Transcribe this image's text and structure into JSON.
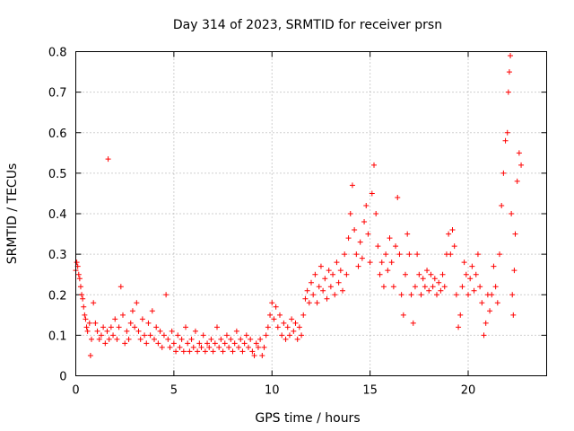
{
  "chart_data": {
    "type": "scatter",
    "title": "Day 314 of 2023, SRMTID for receiver prsn",
    "xlabel": "GPS time / hours",
    "ylabel": "SRMTID / TECUs",
    "xlim": [
      0,
      24
    ],
    "ylim": [
      0,
      0.8
    ],
    "xticks": [
      0,
      5,
      10,
      15,
      20
    ],
    "xtick_labels": [
      "0",
      "5",
      "10",
      "15",
      "20"
    ],
    "yticks": [
      0,
      0.1,
      0.2,
      0.3,
      0.4,
      0.5,
      0.6,
      0.7,
      0.8
    ],
    "ytick_labels": [
      "0",
      "0.1",
      "0.2",
      "0.3",
      "0.4",
      "0.5",
      "0.6",
      "0.7",
      "0.8"
    ],
    "grid": true,
    "marker": "+",
    "color": "#ff0000",
    "series": [
      {
        "name": "SRMTID",
        "points": [
          [
            0.0,
            0.26
          ],
          [
            0.05,
            0.28
          ],
          [
            0.1,
            0.27
          ],
          [
            0.15,
            0.25
          ],
          [
            0.2,
            0.24
          ],
          [
            0.25,
            0.22
          ],
          [
            0.3,
            0.2
          ],
          [
            0.35,
            0.19
          ],
          [
            0.4,
            0.17
          ],
          [
            0.45,
            0.15
          ],
          [
            0.5,
            0.14
          ],
          [
            0.55,
            0.12
          ],
          [
            0.6,
            0.11
          ],
          [
            0.7,
            0.13
          ],
          [
            0.75,
            0.05
          ],
          [
            0.8,
            0.09
          ],
          [
            0.9,
            0.18
          ],
          [
            1.0,
            0.13
          ],
          [
            1.1,
            0.11
          ],
          [
            1.2,
            0.09
          ],
          [
            1.3,
            0.1
          ],
          [
            1.4,
            0.12
          ],
          [
            1.5,
            0.08
          ],
          [
            1.6,
            0.11
          ],
          [
            1.65,
            0.535
          ],
          [
            1.7,
            0.09
          ],
          [
            1.8,
            0.12
          ],
          [
            1.9,
            0.1
          ],
          [
            2.0,
            0.14
          ],
          [
            2.1,
            0.09
          ],
          [
            2.2,
            0.12
          ],
          [
            2.3,
            0.22
          ],
          [
            2.4,
            0.15
          ],
          [
            2.5,
            0.08
          ],
          [
            2.6,
            0.11
          ],
          [
            2.7,
            0.09
          ],
          [
            2.8,
            0.13
          ],
          [
            2.9,
            0.16
          ],
          [
            3.0,
            0.12
          ],
          [
            3.1,
            0.18
          ],
          [
            3.2,
            0.11
          ],
          [
            3.3,
            0.09
          ],
          [
            3.4,
            0.14
          ],
          [
            3.5,
            0.1
          ],
          [
            3.6,
            0.08
          ],
          [
            3.7,
            0.13
          ],
          [
            3.8,
            0.1
          ],
          [
            3.9,
            0.16
          ],
          [
            4.0,
            0.09
          ],
          [
            4.1,
            0.12
          ],
          [
            4.2,
            0.08
          ],
          [
            4.3,
            0.11
          ],
          [
            4.4,
            0.07
          ],
          [
            4.5,
            0.1
          ],
          [
            4.6,
            0.2
          ],
          [
            4.7,
            0.09
          ],
          [
            4.8,
            0.07
          ],
          [
            4.9,
            0.11
          ],
          [
            5.0,
            0.08
          ],
          [
            5.1,
            0.06
          ],
          [
            5.2,
            0.1
          ],
          [
            5.3,
            0.07
          ],
          [
            5.4,
            0.09
          ],
          [
            5.5,
            0.06
          ],
          [
            5.6,
            0.12
          ],
          [
            5.7,
            0.08
          ],
          [
            5.8,
            0.06
          ],
          [
            5.9,
            0.09
          ],
          [
            6.0,
            0.07
          ],
          [
            6.1,
            0.11
          ],
          [
            6.2,
            0.06
          ],
          [
            6.3,
            0.08
          ],
          [
            6.4,
            0.07
          ],
          [
            6.5,
            0.1
          ],
          [
            6.6,
            0.06
          ],
          [
            6.7,
            0.08
          ],
          [
            6.8,
            0.07
          ],
          [
            6.9,
            0.09
          ],
          [
            7.0,
            0.06
          ],
          [
            7.1,
            0.08
          ],
          [
            7.2,
            0.12
          ],
          [
            7.3,
            0.07
          ],
          [
            7.4,
            0.09
          ],
          [
            7.5,
            0.06
          ],
          [
            7.6,
            0.08
          ],
          [
            7.7,
            0.1
          ],
          [
            7.8,
            0.07
          ],
          [
            7.9,
            0.09
          ],
          [
            8.0,
            0.06
          ],
          [
            8.1,
            0.08
          ],
          [
            8.2,
            0.11
          ],
          [
            8.3,
            0.07
          ],
          [
            8.4,
            0.09
          ],
          [
            8.5,
            0.06
          ],
          [
            8.6,
            0.08
          ],
          [
            8.7,
            0.1
          ],
          [
            8.8,
            0.07
          ],
          [
            8.9,
            0.09
          ],
          [
            9.0,
            0.06
          ],
          [
            9.1,
            0.05
          ],
          [
            9.2,
            0.08
          ],
          [
            9.3,
            0.07
          ],
          [
            9.4,
            0.09
          ],
          [
            9.5,
            0.05
          ],
          [
            9.6,
            0.07
          ],
          [
            9.7,
            0.1
          ],
          [
            9.8,
            0.12
          ],
          [
            9.9,
            0.15
          ],
          [
            10.0,
            0.18
          ],
          [
            10.1,
            0.14
          ],
          [
            10.2,
            0.17
          ],
          [
            10.3,
            0.12
          ],
          [
            10.4,
            0.15
          ],
          [
            10.5,
            0.1
          ],
          [
            10.6,
            0.13
          ],
          [
            10.7,
            0.09
          ],
          [
            10.8,
            0.12
          ],
          [
            10.9,
            0.1
          ],
          [
            11.0,
            0.14
          ],
          [
            11.1,
            0.11
          ],
          [
            11.2,
            0.13
          ],
          [
            11.3,
            0.09
          ],
          [
            11.4,
            0.12
          ],
          [
            11.5,
            0.1
          ],
          [
            11.6,
            0.15
          ],
          [
            11.7,
            0.19
          ],
          [
            11.8,
            0.21
          ],
          [
            11.9,
            0.18
          ],
          [
            12.0,
            0.23
          ],
          [
            12.1,
            0.2
          ],
          [
            12.2,
            0.25
          ],
          [
            12.3,
            0.18
          ],
          [
            12.4,
            0.22
          ],
          [
            12.5,
            0.27
          ],
          [
            12.6,
            0.21
          ],
          [
            12.7,
            0.24
          ],
          [
            12.8,
            0.19
          ],
          [
            12.9,
            0.26
          ],
          [
            13.0,
            0.22
          ],
          [
            13.1,
            0.25
          ],
          [
            13.2,
            0.2
          ],
          [
            13.3,
            0.28
          ],
          [
            13.4,
            0.23
          ],
          [
            13.5,
            0.26
          ],
          [
            13.6,
            0.21
          ],
          [
            13.7,
            0.3
          ],
          [
            13.8,
            0.25
          ],
          [
            13.9,
            0.34
          ],
          [
            14.0,
            0.4
          ],
          [
            14.1,
            0.47
          ],
          [
            14.2,
            0.36
          ],
          [
            14.3,
            0.3
          ],
          [
            14.4,
            0.27
          ],
          [
            14.5,
            0.33
          ],
          [
            14.6,
            0.29
          ],
          [
            14.7,
            0.38
          ],
          [
            14.8,
            0.42
          ],
          [
            14.9,
            0.35
          ],
          [
            15.0,
            0.28
          ],
          [
            15.1,
            0.45
          ],
          [
            15.2,
            0.52
          ],
          [
            15.3,
            0.4
          ],
          [
            15.4,
            0.32
          ],
          [
            15.5,
            0.25
          ],
          [
            15.6,
            0.28
          ],
          [
            15.7,
            0.22
          ],
          [
            15.8,
            0.3
          ],
          [
            15.9,
            0.26
          ],
          [
            16.0,
            0.34
          ],
          [
            16.1,
            0.28
          ],
          [
            16.2,
            0.22
          ],
          [
            16.3,
            0.32
          ],
          [
            16.4,
            0.44
          ],
          [
            16.5,
            0.3
          ],
          [
            16.6,
            0.2
          ],
          [
            16.7,
            0.15
          ],
          [
            16.8,
            0.25
          ],
          [
            16.9,
            0.35
          ],
          [
            17.0,
            0.3
          ],
          [
            17.1,
            0.2
          ],
          [
            17.2,
            0.13
          ],
          [
            17.3,
            0.22
          ],
          [
            17.4,
            0.3
          ],
          [
            17.5,
            0.25
          ],
          [
            17.6,
            0.2
          ],
          [
            17.7,
            0.24
          ],
          [
            17.8,
            0.22
          ],
          [
            17.9,
            0.26
          ],
          [
            18.0,
            0.21
          ],
          [
            18.1,
            0.25
          ],
          [
            18.2,
            0.22
          ],
          [
            18.3,
            0.24
          ],
          [
            18.4,
            0.2
          ],
          [
            18.5,
            0.23
          ],
          [
            18.6,
            0.21
          ],
          [
            18.7,
            0.25
          ],
          [
            18.8,
            0.22
          ],
          [
            18.9,
            0.3
          ],
          [
            19.0,
            0.35
          ],
          [
            19.1,
            0.3
          ],
          [
            19.2,
            0.36
          ],
          [
            19.3,
            0.32
          ],
          [
            19.4,
            0.2
          ],
          [
            19.5,
            0.12
          ],
          [
            19.6,
            0.15
          ],
          [
            19.7,
            0.22
          ],
          [
            19.8,
            0.28
          ],
          [
            19.9,
            0.25
          ],
          [
            20.0,
            0.2
          ],
          [
            20.1,
            0.24
          ],
          [
            20.2,
            0.27
          ],
          [
            20.3,
            0.21
          ],
          [
            20.4,
            0.25
          ],
          [
            20.5,
            0.3
          ],
          [
            20.6,
            0.22
          ],
          [
            20.7,
            0.18
          ],
          [
            20.8,
            0.1
          ],
          [
            20.9,
            0.13
          ],
          [
            21.0,
            0.2
          ],
          [
            21.1,
            0.16
          ],
          [
            21.2,
            0.2
          ],
          [
            21.3,
            0.27
          ],
          [
            21.4,
            0.22
          ],
          [
            21.5,
            0.18
          ],
          [
            21.6,
            0.3
          ],
          [
            21.7,
            0.42
          ],
          [
            21.8,
            0.5
          ],
          [
            21.9,
            0.58
          ],
          [
            22.0,
            0.6
          ],
          [
            22.05,
            0.7
          ],
          [
            22.1,
            0.75
          ],
          [
            22.15,
            0.79
          ],
          [
            22.2,
            0.4
          ],
          [
            22.25,
            0.2
          ],
          [
            22.3,
            0.15
          ],
          [
            22.35,
            0.26
          ],
          [
            22.4,
            0.35
          ],
          [
            22.5,
            0.48
          ],
          [
            22.6,
            0.55
          ],
          [
            22.7,
            0.52
          ]
        ]
      }
    ]
  }
}
